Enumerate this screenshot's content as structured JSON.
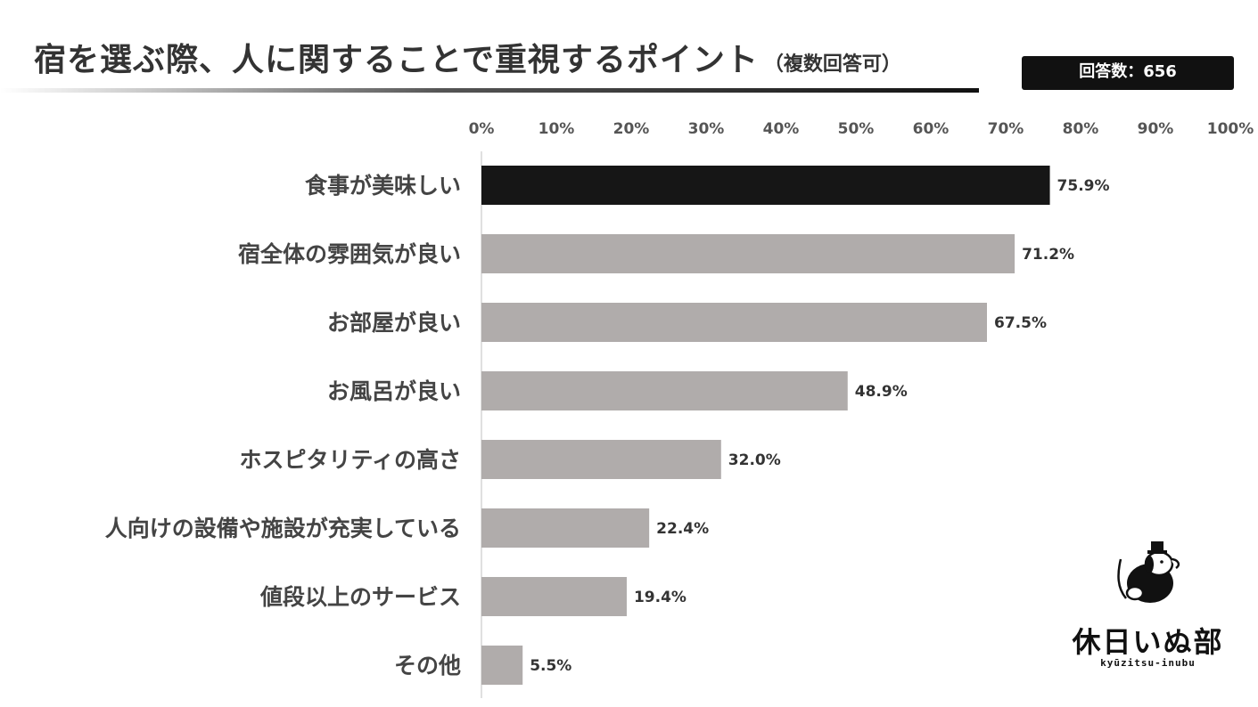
{
  "header": {
    "title": "宿を選ぶ際、人に関することで重視するポイント",
    "subtitle": "（複数回答可）",
    "respondents": "回答数：656"
  },
  "chart_data": {
    "type": "bar",
    "orientation": "horizontal",
    "title": "宿を選ぶ際、人に関することで重視するポイント",
    "subtitle": "（複数回答可）",
    "categories": [
      "食事が美味しい",
      "宿全体の雰囲気が良い",
      "お部屋が良い",
      "お風呂が良い",
      "ホスピタリティの高さ",
      "人向けの設備や施設が充実している",
      "値段以上のサービス",
      "その他"
    ],
    "values": [
      75.9,
      71.2,
      67.5,
      48.9,
      32.0,
      22.4,
      19.4,
      5.5
    ],
    "value_labels": [
      "75.9%",
      "71.2%",
      "67.5%",
      "48.9%",
      "32.0%",
      "22.4%",
      "19.4%",
      "5.5%"
    ],
    "xlim": [
      0,
      100
    ],
    "x_ticks": [
      "0%",
      "10%",
      "20%",
      "30%",
      "40%",
      "50%",
      "60%",
      "70%",
      "80%",
      "90%",
      "100%"
    ],
    "axis_position": "top",
    "grid": false,
    "colors": {
      "highlight": "#161616",
      "default": "#b0acab"
    },
    "highlight_index": 0
  },
  "logo": {
    "name": "休日いぬ部",
    "romaji": "kyūzitsu-inubu",
    "icon": "dog-icon"
  }
}
